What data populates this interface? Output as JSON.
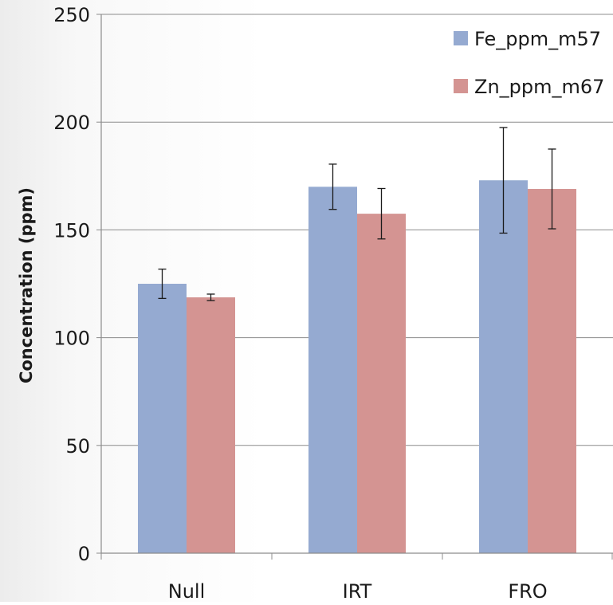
{
  "chart_data": {
    "type": "bar",
    "title": "",
    "xlabel": "",
    "ylabel": "Concentration (ppm)",
    "ylim": [
      0,
      250
    ],
    "yticks": [
      0,
      50,
      100,
      150,
      200,
      250
    ],
    "categories": [
      "Null",
      "IRT",
      "FRO"
    ],
    "series": [
      {
        "name": "Fe_ppm_m57",
        "color": "#95aad1",
        "values": [
          125,
          170,
          173
        ],
        "errors": [
          6.8,
          10.5,
          24.5
        ]
      },
      {
        "name": "Zn_ppm_m67",
        "color": "#d49492",
        "values": [
          118.7,
          157.5,
          169
        ],
        "errors": [
          1.5,
          11.7,
          18.5
        ]
      }
    ],
    "grid": true,
    "legend": "top-right"
  }
}
